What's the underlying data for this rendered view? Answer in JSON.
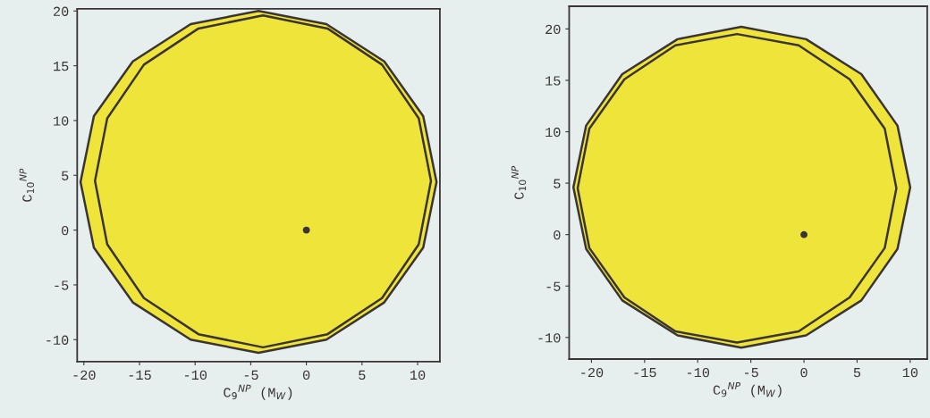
{
  "chart_data": [
    {
      "type": "area",
      "xlabel": "C$_{9}$$^{NP}$ (M$_{W}$)",
      "ylabel": "C$_{10}$$^{NP}$",
      "xlim": [
        -20.6,
        12
      ],
      "ylim": [
        -12,
        20.2
      ],
      "xticks": [
        -20,
        -15,
        -10,
        -5,
        0,
        5,
        10
      ],
      "yticks": [
        -10,
        -5,
        0,
        5,
        10,
        15,
        20
      ],
      "series": [
        {
          "color": "#efe53a",
          "x": [
            11.7,
            10.5,
            7.0,
            1.8,
            -4.3,
            -10.4,
            -15.6,
            -19.1,
            -20.3,
            -19.1,
            -15.6,
            -10.4,
            -4.3,
            1.8,
            7.0,
            10.5,
            11.7
          ],
          "values": [
            4.4,
            10.4,
            15.4,
            18.8,
            20.0,
            18.8,
            15.4,
            10.4,
            4.4,
            -1.6,
            -6.6,
            -10.0,
            -11.2,
            -10.0,
            -6.6,
            -1.6,
            4.4
          ]
        },
        {
          "color": "#efe53a",
          "x": [
            11.2,
            10.1,
            6.8,
            1.9,
            -3.9,
            -9.7,
            -14.6,
            -17.9,
            -19.0,
            -17.9,
            -14.6,
            -9.7,
            -3.9,
            1.9,
            6.8,
            10.1,
            11.2
          ],
          "values": [
            4.5,
            10.2,
            15.1,
            18.4,
            19.6,
            18.4,
            15.1,
            10.2,
            4.5,
            -1.3,
            -6.2,
            -9.5,
            -10.7,
            -9.5,
            -6.2,
            -1.3,
            4.5
          ]
        },
        {
          "type": "scatter",
          "color": "#3b3434",
          "x": [
            0
          ],
          "values": [
            0
          ]
        }
      ]
    },
    {
      "type": "area",
      "xlabel": "C$_{9}$$^{NP}$ (M$_{W}$)",
      "ylabel": "C$_{10}$$^{NP}$",
      "xlim": [
        -22.1,
        11.6
      ],
      "ylim": [
        -12.1,
        22.2
      ],
      "xticks": [
        -20,
        -15,
        -10,
        -5,
        0,
        5,
        10
      ],
      "yticks": [
        -10,
        -5,
        0,
        5,
        10,
        15,
        20
      ],
      "series": [
        {
          "color": "#efe53a",
          "x": [
            10.0,
            8.8,
            5.4,
            0.2,
            -5.9,
            -11.9,
            -17.1,
            -20.5,
            -21.7,
            -20.5,
            -17.1,
            -11.9,
            -5.9,
            0.2,
            5.4,
            8.8,
            10.0
          ],
          "values": [
            4.6,
            10.6,
            15.6,
            19.0,
            20.2,
            19.0,
            15.6,
            10.6,
            4.6,
            -1.4,
            -6.4,
            -9.8,
            -11.0,
            -9.8,
            -6.4,
            -1.4,
            4.6
          ]
        },
        {
          "color": "#efe53a",
          "x": [
            8.7,
            7.6,
            4.3,
            -0.5,
            -6.3,
            -12.1,
            -16.9,
            -20.2,
            -21.3,
            -20.2,
            -16.9,
            -12.1,
            -6.3,
            -0.5,
            4.3,
            7.6,
            8.7
          ],
          "values": [
            4.5,
            10.3,
            15.1,
            18.4,
            19.5,
            18.4,
            15.1,
            10.3,
            4.5,
            -1.3,
            -6.1,
            -9.4,
            -10.5,
            -9.4,
            -6.1,
            -1.3,
            4.5
          ]
        },
        {
          "type": "scatter",
          "color": "#3b3434",
          "x": [
            0
          ],
          "values": [
            0
          ]
        }
      ]
    }
  ]
}
